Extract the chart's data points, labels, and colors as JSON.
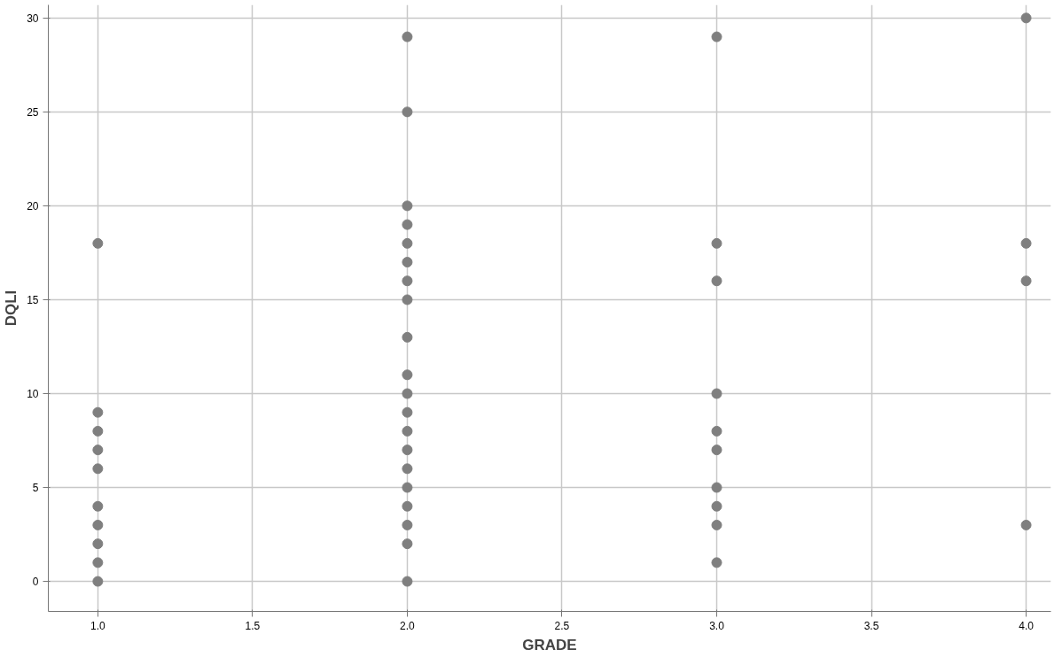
{
  "chart_data": {
    "type": "scatter",
    "xlabel": "GRADE",
    "ylabel": "DQLI",
    "x": [
      1,
      1,
      1,
      1,
      1,
      1,
      1,
      1,
      1,
      1,
      2,
      2,
      2,
      2,
      2,
      2,
      2,
      2,
      2,
      2,
      2,
      2,
      2,
      2,
      2,
      2,
      2,
      2,
      2,
      2,
      3,
      3,
      3,
      3,
      3,
      3,
      3,
      3,
      3,
      3,
      4,
      4,
      4,
      4
    ],
    "values": [
      18,
      9,
      8,
      7,
      6,
      4,
      3,
      2,
      1,
      0,
      29,
      25,
      20,
      19,
      18,
      17,
      16,
      15,
      13,
      11,
      10,
      9,
      8,
      7,
      6,
      5,
      4,
      3,
      2,
      0,
      29,
      18,
      16,
      10,
      8,
      7,
      5,
      4,
      3,
      1,
      30,
      18,
      16,
      3
    ],
    "color": "#7f7f7f",
    "marker": "circle",
    "grid": true,
    "legend": false,
    "xlim": [
      0.84,
      4.08
    ],
    "ylim": [
      -1.6,
      30.7
    ],
    "xticks": [
      {
        "value": 1.0,
        "label": "1.0"
      },
      {
        "value": 1.5,
        "label": "1.5"
      },
      {
        "value": 2.0,
        "label": "2.0"
      },
      {
        "value": 2.5,
        "label": "2.5"
      },
      {
        "value": 3.0,
        "label": "3.0"
      },
      {
        "value": 3.5,
        "label": "3.5"
      },
      {
        "value": 4.0,
        "label": "4.0"
      }
    ],
    "yticks": [
      0,
      5,
      10,
      15,
      20,
      25,
      30
    ]
  }
}
